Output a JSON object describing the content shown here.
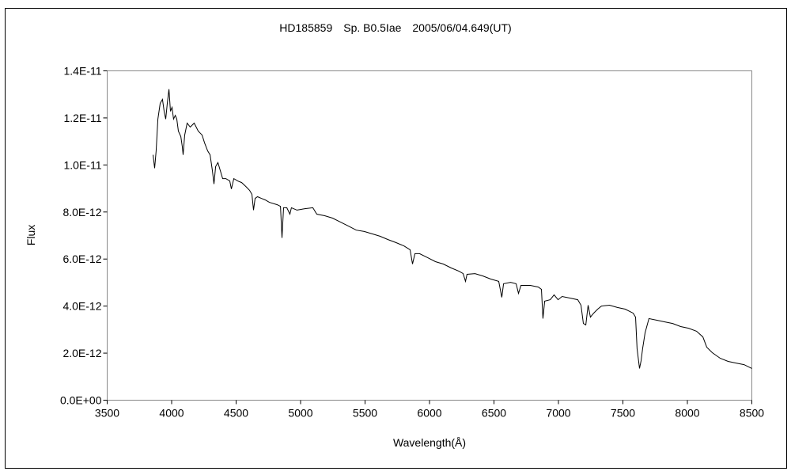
{
  "chart_data": {
    "type": "line",
    "title": "HD185859　Sp. B0.5Iae　2005/06/04.649(UT)",
    "xlabel": "Wavelength(Å)",
    "ylabel": "Flux",
    "xlim": [
      3500,
      8500
    ],
    "ylim": [
      0,
      1.4e-11
    ],
    "x_ticks": [
      3500,
      4000,
      4500,
      5000,
      5500,
      6000,
      6500,
      7000,
      7500,
      8000,
      8500
    ],
    "x_tick_labels": [
      "3500",
      "4000",
      "4500",
      "5000",
      "5500",
      "6000",
      "6500",
      "7000",
      "7500",
      "8000",
      "8500"
    ],
    "y_ticks": [
      0,
      2e-12,
      4e-12,
      6e-12,
      8e-12,
      1e-11,
      1.2e-11,
      1.4e-11
    ],
    "y_tick_labels": [
      "0.0E+00",
      "2.0E-12",
      "4.0E-12",
      "6.0E-12",
      "8.0E-12",
      "1.0E-11",
      "1.2E-11",
      "1.4E-11"
    ],
    "grid": false,
    "legend": "none",
    "y_unit_scale": 1e-12,
    "series": [
      {
        "name": "Flux",
        "color": "#000000",
        "points": [
          [
            3856,
            10.43
          ],
          [
            3868,
            9.86
          ],
          [
            3880,
            10.6
          ],
          [
            3893,
            11.95
          ],
          [
            3911,
            12.62
          ],
          [
            3929,
            12.79
          ],
          [
            3942,
            12.28
          ],
          [
            3954,
            11.95
          ],
          [
            3966,
            12.62
          ],
          [
            3979,
            13.22
          ],
          [
            3991,
            12.28
          ],
          [
            4003,
            12.45
          ],
          [
            4015,
            11.95
          ],
          [
            4028,
            12.11
          ],
          [
            4040,
            11.95
          ],
          [
            4052,
            11.44
          ],
          [
            4071,
            11.21
          ],
          [
            4083,
            10.77
          ],
          [
            4089,
            10.43
          ],
          [
            4101,
            11.27
          ],
          [
            4120,
            11.78
          ],
          [
            4144,
            11.61
          ],
          [
            4175,
            11.78
          ],
          [
            4206,
            11.44
          ],
          [
            4236,
            11.27
          ],
          [
            4255,
            10.94
          ],
          [
            4279,
            10.6
          ],
          [
            4298,
            10.43
          ],
          [
            4316,
            9.76
          ],
          [
            4328,
            9.19
          ],
          [
            4341,
            9.93
          ],
          [
            4359,
            10.1
          ],
          [
            4377,
            9.76
          ],
          [
            4396,
            9.42
          ],
          [
            4420,
            9.42
          ],
          [
            4451,
            9.32
          ],
          [
            4463,
            8.98
          ],
          [
            4482,
            9.42
          ],
          [
            4512,
            9.32
          ],
          [
            4543,
            9.25
          ],
          [
            4574,
            9.09
          ],
          [
            4604,
            8.92
          ],
          [
            4623,
            8.75
          ],
          [
            4635,
            8.08
          ],
          [
            4647,
            8.58
          ],
          [
            4666,
            8.65
          ],
          [
            4696,
            8.58
          ],
          [
            4727,
            8.51
          ],
          [
            4758,
            8.41
          ],
          [
            4819,
            8.31
          ],
          [
            4844,
            8.24
          ],
          [
            4856,
            6.9
          ],
          [
            4868,
            8.18
          ],
          [
            4893,
            8.18
          ],
          [
            4917,
            7.91
          ],
          [
            4929,
            8.18
          ],
          [
            4972,
            8.08
          ],
          [
            5034,
            8.14
          ],
          [
            5095,
            8.18
          ],
          [
            5126,
            7.91
          ],
          [
            5187,
            7.84
          ],
          [
            5248,
            7.74
          ],
          [
            5310,
            7.57
          ],
          [
            5371,
            7.4
          ],
          [
            5432,
            7.23
          ],
          [
            5494,
            7.17
          ],
          [
            5555,
            7.07
          ],
          [
            5616,
            6.97
          ],
          [
            5678,
            6.83
          ],
          [
            5739,
            6.7
          ],
          [
            5801,
            6.56
          ],
          [
            5850,
            6.39
          ],
          [
            5868,
            5.79
          ],
          [
            5887,
            6.23
          ],
          [
            5923,
            6.23
          ],
          [
            5985,
            6.06
          ],
          [
            6046,
            5.89
          ],
          [
            6107,
            5.79
          ],
          [
            6169,
            5.62
          ],
          [
            6230,
            5.48
          ],
          [
            6261,
            5.38
          ],
          [
            6279,
            5.05
          ],
          [
            6291,
            5.35
          ],
          [
            6353,
            5.38
          ],
          [
            6414,
            5.28
          ],
          [
            6475,
            5.15
          ],
          [
            6537,
            5.05
          ],
          [
            6561,
            4.37
          ],
          [
            6574,
            4.95
          ],
          [
            6629,
            5.01
          ],
          [
            6672,
            4.95
          ],
          [
            6690,
            4.54
          ],
          [
            6709,
            4.88
          ],
          [
            6782,
            4.88
          ],
          [
            6844,
            4.81
          ],
          [
            6868,
            4.71
          ],
          [
            6880,
            3.47
          ],
          [
            6893,
            4.21
          ],
          [
            6936,
            4.27
          ],
          [
            6966,
            4.48
          ],
          [
            6997,
            4.27
          ],
          [
            7028,
            4.41
          ],
          [
            7089,
            4.34
          ],
          [
            7150,
            4.27
          ],
          [
            7175,
            4.04
          ],
          [
            7193,
            3.26
          ],
          [
            7212,
            3.2
          ],
          [
            7230,
            4.04
          ],
          [
            7248,
            3.53
          ],
          [
            7273,
            3.7
          ],
          [
            7304,
            3.87
          ],
          [
            7334,
            4.0
          ],
          [
            7396,
            4.04
          ],
          [
            7457,
            3.94
          ],
          [
            7518,
            3.87
          ],
          [
            7580,
            3.7
          ],
          [
            7598,
            3.53
          ],
          [
            7610,
            2.19
          ],
          [
            7629,
            1.35
          ],
          [
            7641,
            1.68
          ],
          [
            7653,
            2.19
          ],
          [
            7672,
            2.86
          ],
          [
            7702,
            3.47
          ],
          [
            7764,
            3.4
          ],
          [
            7825,
            3.33
          ],
          [
            7886,
            3.26
          ],
          [
            7948,
            3.13
          ],
          [
            8009,
            3.06
          ],
          [
            8071,
            2.93
          ],
          [
            8120,
            2.69
          ],
          [
            8150,
            2.25
          ],
          [
            8193,
            2.02
          ],
          [
            8255,
            1.78
          ],
          [
            8316,
            1.65
          ],
          [
            8377,
            1.58
          ],
          [
            8439,
            1.51
          ],
          [
            8500,
            1.35
          ]
        ]
      }
    ]
  }
}
